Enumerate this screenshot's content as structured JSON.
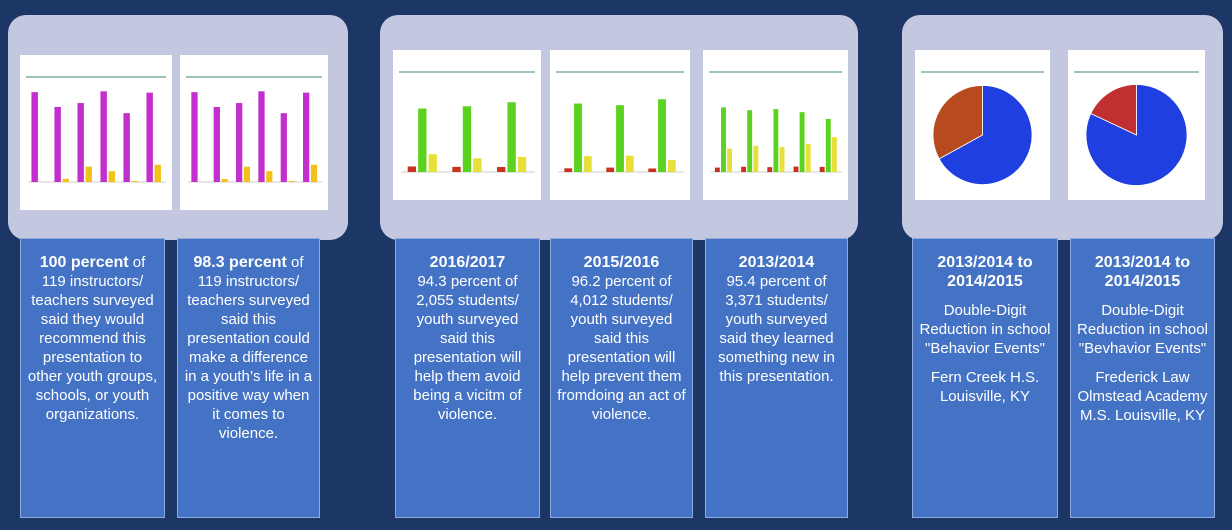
{
  "boxes": [
    {
      "lead": "100 percent",
      "text": " of 119 instructors/ teachers surveyed said they would recommend this presentation to other youth groups, schools, or youth organizations."
    },
    {
      "lead": "98.3 percent",
      "text": " of 119 instructors/ teachers surveyed said this presentation could make a difference in a youth’s life in a positive way when it comes to violence."
    },
    {
      "lead": "2016/2017",
      "text": "94.3 percent of 2,055 students/ youth surveyed said this presentation will help them avoid being a vicitm of violence."
    },
    {
      "lead": "2015/2016",
      "text": "96.2 percent of 4,012 students/ youth surveyed said this presentation will help prevent them fromdoing an act of violence."
    },
    {
      "lead": "2013/2014",
      "text": "95.4 percent of 3,371 students/ youth surveyed said they learned something new in this presentation."
    },
    {
      "lead": "2013/2014 to 2014/2015",
      "text": "Double-Digit Reduction in school \"Behavior Events\"",
      "place": "Fern Creek H.S. Louisville, KY"
    },
    {
      "lead": "2013/2014 to 2014/2015",
      "text": "Double-Digit Reduction in school \"Bevhavior Events\"",
      "place": "Frederick Law Olmstead Academy M.S. Louisville, KY"
    }
  ],
  "thumbnails": [
    {
      "type": "bar",
      "ylim": [
        0,
        100
      ],
      "series": [
        {
          "color": "#c22fcc",
          "values": [
            96.6,
            80.7,
            84.9,
            97.5,
            74.0,
            96.1
          ]
        },
        {
          "color": "#f2c21a",
          "values": [
            0.1,
            3.4,
            16.6,
            11.7,
            1.0,
            18.6
          ]
        }
      ]
    },
    {
      "type": "bar",
      "ylim": [
        0,
        100
      ],
      "series": [
        {
          "color": "#c22fcc",
          "values": [
            96.6,
            80.7,
            84.9,
            97.5,
            74.0,
            96.1
          ]
        },
        {
          "color": "#f2c21a",
          "values": [
            0.1,
            3.2,
            16.5,
            11.7,
            1.0,
            18.6
          ]
        }
      ]
    },
    {
      "type": "bar",
      "ylim": [
        0,
        100
      ],
      "series": [
        {
          "color": "#c8321e",
          "values": [
            6.3,
            5.8,
            5.7
          ]
        },
        {
          "color": "#5ad21e",
          "values": [
            72.1,
            74.7,
            79.3
          ]
        },
        {
          "color": "#e8e03a",
          "values": [
            20.3,
            15.6,
            17.2
          ]
        }
      ]
    },
    {
      "type": "bar",
      "ylim": [
        0,
        100
      ],
      "series": [
        {
          "color": "#c8321e",
          "values": [
            4.2,
            5.0,
            4.0
          ]
        },
        {
          "color": "#5ad21e",
          "values": [
            77.8,
            75.9,
            82.7
          ]
        },
        {
          "color": "#e8e03a",
          "values": [
            18.0,
            18.6,
            13.5
          ]
        }
      ]
    },
    {
      "type": "bar",
      "ylim": [
        0,
        100
      ],
      "series": [
        {
          "color": "#c8321e",
          "values": [
            5.0,
            6.0,
            5.5,
            6.2,
            5.8
          ]
        },
        {
          "color": "#5ad21e",
          "values": [
            73.4,
            70.2,
            71.5,
            68.0,
            60.3
          ]
        },
        {
          "color": "#e8e03a",
          "values": [
            26.6,
            29.8,
            28.5,
            32.0,
            39.7
          ]
        }
      ]
    },
    {
      "type": "pie",
      "values": [
        67,
        33
      ],
      "colors": [
        "#1f3fe0",
        "#b84a20"
      ]
    },
    {
      "type": "pie",
      "values": [
        82,
        18
      ],
      "colors": [
        "#1f3fe0",
        "#c03030"
      ]
    }
  ]
}
